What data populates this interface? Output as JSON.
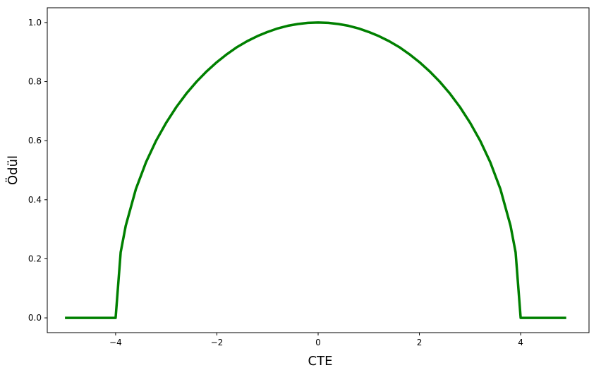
{
  "chart_data": {
    "type": "line",
    "title": "",
    "xlabel": "CTE",
    "ylabel": "Ödül",
    "xlim": [
      -5.35,
      5.35
    ],
    "ylim": [
      -0.05,
      1.05
    ],
    "grid": false,
    "x_ticks": [
      -4,
      -2,
      0,
      2,
      4
    ],
    "x_tick_labels": [
      "−4",
      "−2",
      "0",
      "2",
      "4"
    ],
    "y_ticks": [
      0.0,
      0.2,
      0.4,
      0.6,
      0.8,
      1.0
    ],
    "y_tick_labels": [
      "0.0",
      "0.2",
      "0.4",
      "0.6",
      "0.8",
      "1.0"
    ],
    "series": [
      {
        "color": "#008000",
        "x": [
          -5.0,
          -4.6,
          -4.2,
          -4.0,
          -3.9,
          -3.8,
          -3.6,
          -3.4,
          -3.2,
          -3.0,
          -2.8,
          -2.6,
          -2.4,
          -2.2,
          -2.0,
          -1.8,
          -1.6,
          -1.4,
          -1.2,
          -1.0,
          -0.8,
          -0.6,
          -0.4,
          -0.2,
          0.0,
          0.2,
          0.4,
          0.6,
          0.8,
          1.0,
          1.2,
          1.4,
          1.6,
          1.8,
          2.0,
          2.2,
          2.4,
          2.6,
          2.8,
          3.0,
          3.2,
          3.4,
          3.6,
          3.8,
          3.9,
          4.0,
          4.2,
          4.6,
          4.9
        ],
        "y": [
          0.0,
          0.0,
          0.0,
          0.0,
          0.222,
          0.312,
          0.436,
          0.527,
          0.6,
          0.661,
          0.714,
          0.76,
          0.8,
          0.835,
          0.866,
          0.893,
          0.917,
          0.937,
          0.954,
          0.968,
          0.98,
          0.989,
          0.995,
          0.999,
          1.0,
          0.999,
          0.995,
          0.989,
          0.98,
          0.968,
          0.954,
          0.937,
          0.917,
          0.893,
          0.866,
          0.835,
          0.8,
          0.76,
          0.714,
          0.661,
          0.6,
          0.527,
          0.436,
          0.312,
          0.222,
          0.0,
          0.0,
          0.0,
          0.0
        ]
      }
    ]
  }
}
